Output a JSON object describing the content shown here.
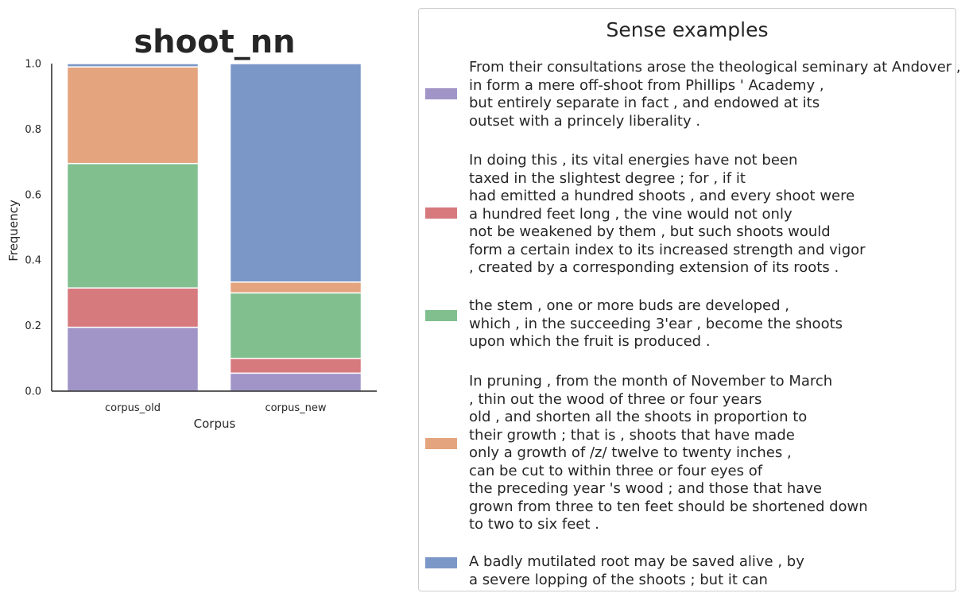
{
  "chart_data": {
    "type": "bar",
    "stacked": true,
    "title": "shoot_nn",
    "xlabel": "Corpus",
    "ylabel": "Frequency",
    "ylim": [
      0,
      1
    ],
    "yticks": [
      "0.0",
      "0.2",
      "0.4",
      "0.6",
      "0.8",
      "1.0"
    ],
    "categories": [
      "corpus_old",
      "corpus_new"
    ],
    "series": [
      {
        "color": "#a195c8",
        "values": [
          0.195,
          0.055
        ]
      },
      {
        "color": "#d67a7d",
        "values": [
          0.12,
          0.045
        ]
      },
      {
        "color": "#81bf8f",
        "values": [
          0.38,
          0.2
        ]
      },
      {
        "color": "#e4a47e",
        "values": [
          0.295,
          0.033
        ]
      },
      {
        "color": "#7a97c7",
        "values": [
          0.01,
          0.667
        ]
      }
    ],
    "legend": {
      "title": "Sense examples",
      "placement": "right",
      "entries": [
        {
          "color": "#a195c8",
          "text": "From their consultations arose the theological seminary at Andover ,\nin form a mere off-shoot from Phillips ' Academy ,\nbut entirely separate in fact , and endowed at its\noutset with a princely liberality ."
        },
        {
          "color": "#d67a7d",
          "text": "In doing this , its vital energies have not been\ntaxed in the slightest degree ; for , if it\nhad emitted a hundred shoots , and every shoot were\na hundred feet long , the vine would not only\nnot be weakened by them , but such shoots would\nform a certain index to its increased strength and vigor\n, created by a corresponding extension of its roots ."
        },
        {
          "color": "#81bf8f",
          "text": "the stem , one or more buds are developed ,\nwhich , in the succeeding 3'ear , become the shoots\nupon which the fruit is produced ."
        },
        {
          "color": "#e4a47e",
          "text": "In pruning , from the month of November to March\n, thin out the wood of three or four years\nold , and shorten all the shoots in proportion to\ntheir growth ; that is , shoots that have made\nonly a growth of /z/ twelve to twenty inches ,\ncan be cut to within three or four eyes of\nthe preceding year 's wood ; and those that have\ngrown from three to ten feet should be shortened down\nto two to six feet ."
        },
        {
          "color": "#7a97c7",
          "text": "A badly mutilated root may be saved alive , by\na severe lopping of the shoots ; but it can"
        }
      ]
    }
  }
}
